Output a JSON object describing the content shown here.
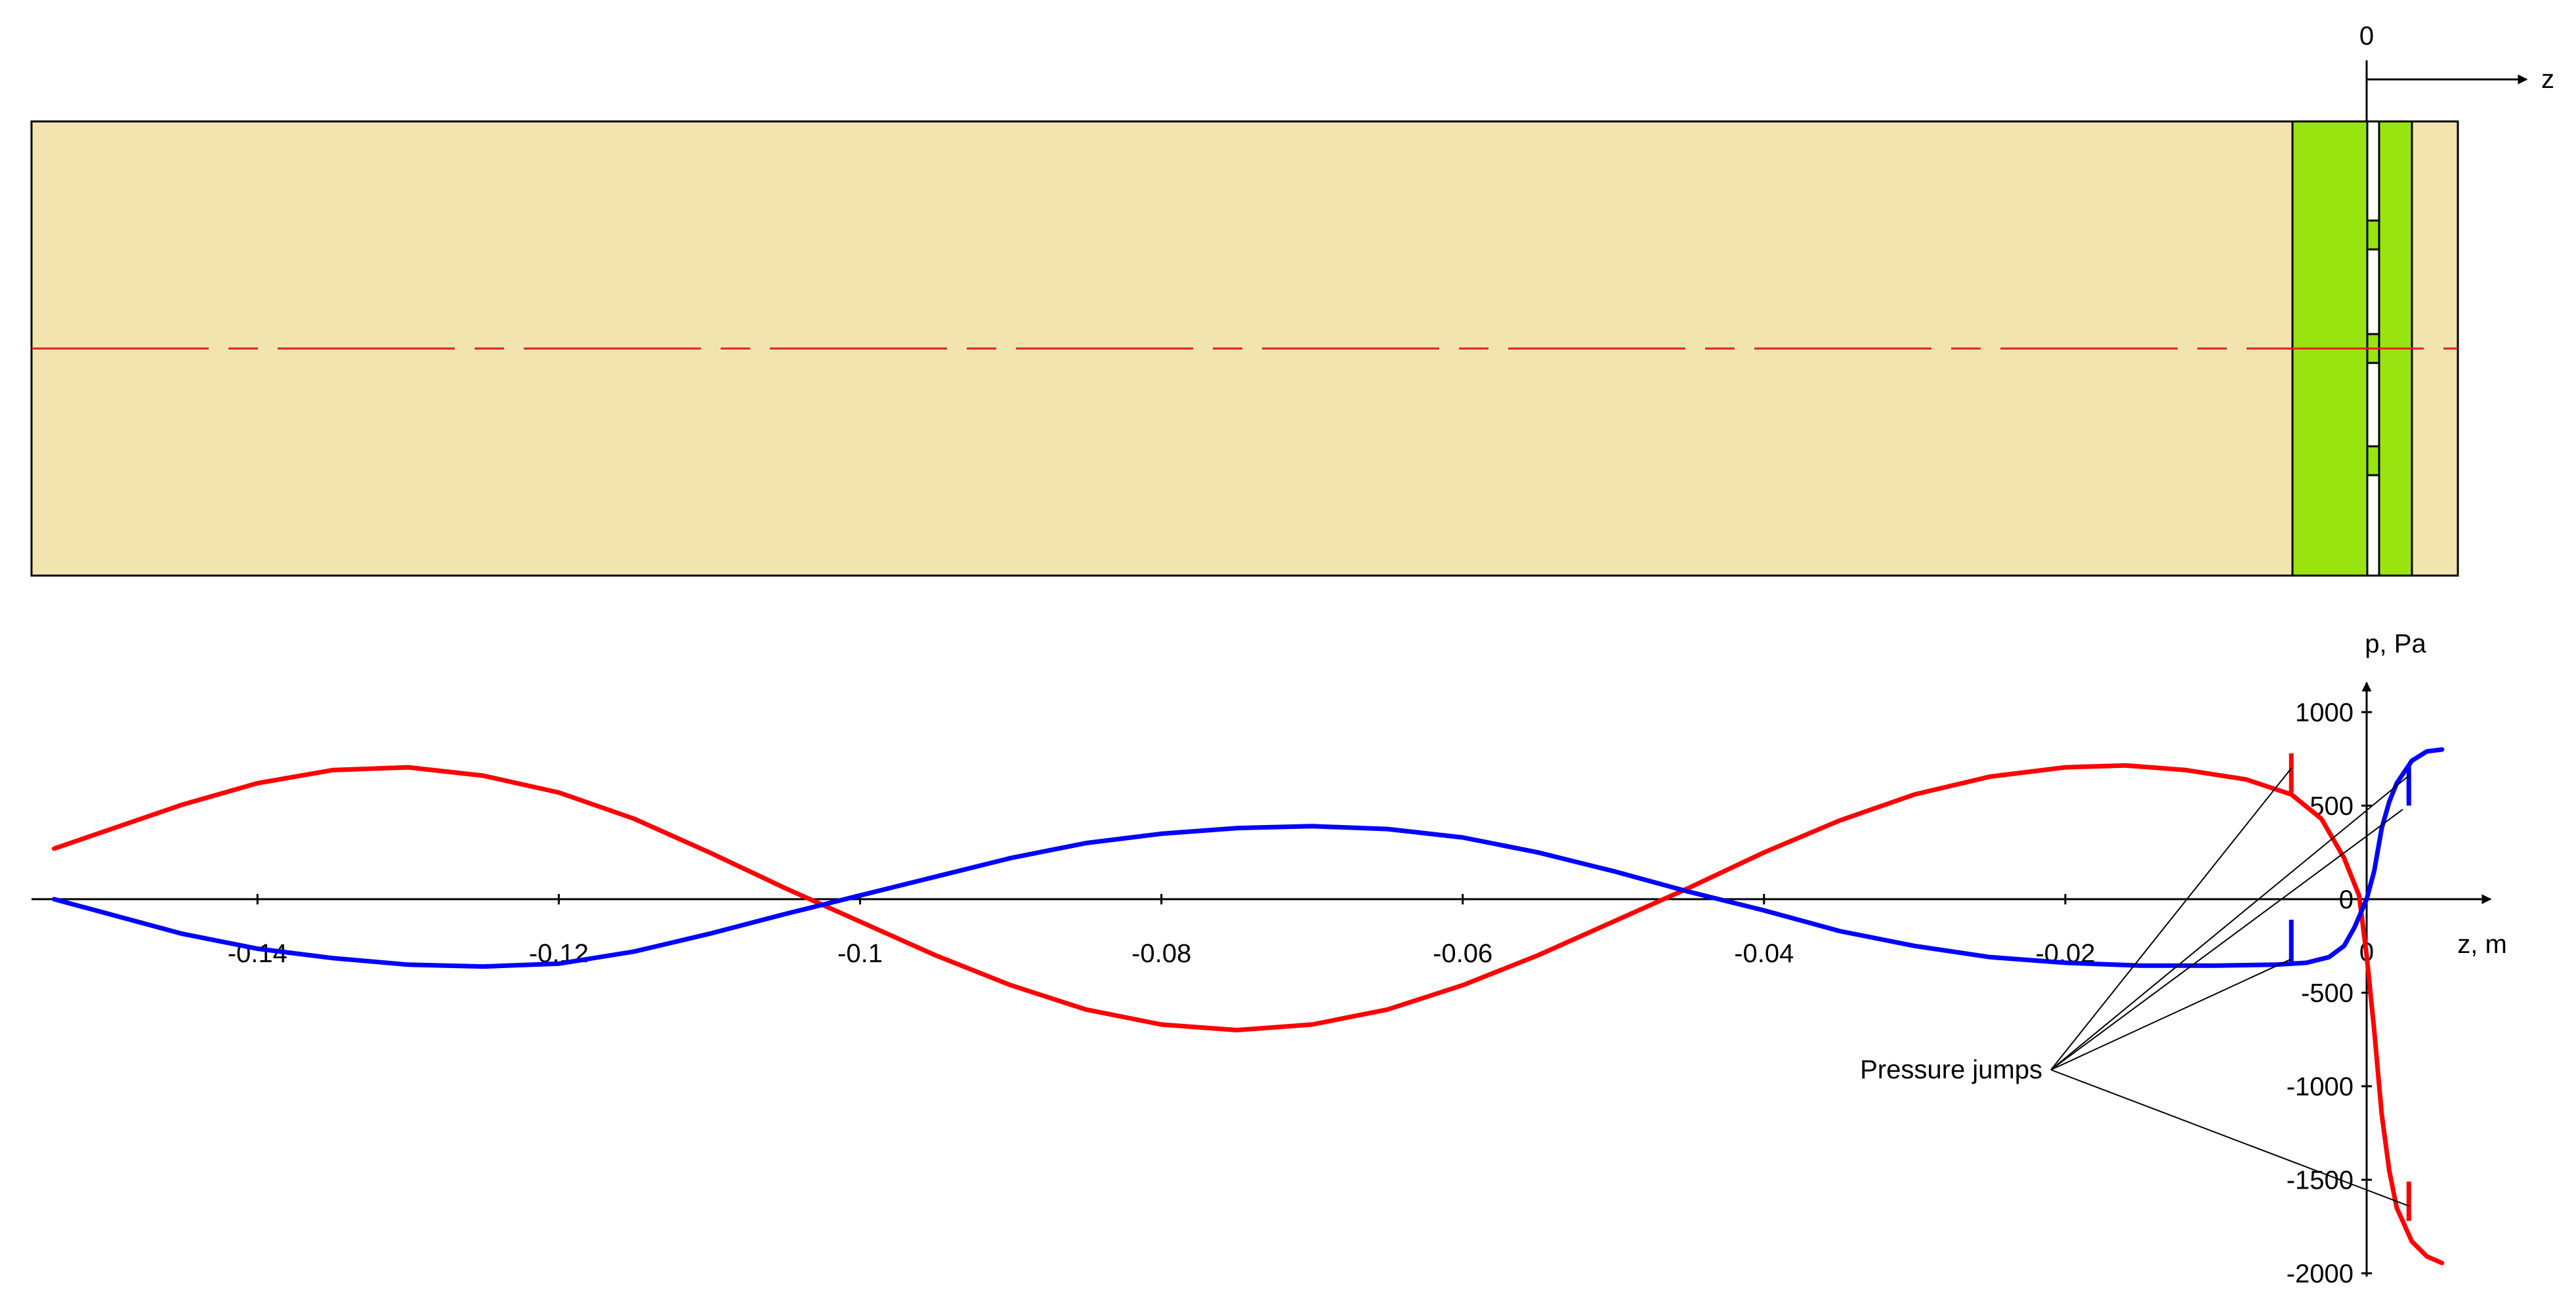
{
  "schematic": {
    "origin_label": "0",
    "axis_label": "z",
    "colors": {
      "body": "#f2e4ae",
      "plate": "#99e410",
      "centerline": "#e02020",
      "outline": "#000000"
    }
  },
  "graph": {
    "y_axis_label": "p, Pa",
    "x_axis_label": "z, m",
    "annotation": "Pressure jumps"
  },
  "chart_data": {
    "type": "line",
    "xlim": [
      -0.155,
      0.008
    ],
    "ylim": [
      -2000,
      1050
    ],
    "x_ticks": [
      {
        "value": -0.14,
        "label": "-0.14"
      },
      {
        "value": -0.12,
        "label": "-0.12"
      },
      {
        "value": -0.1,
        "label": "-0.1"
      },
      {
        "value": -0.08,
        "label": "-0.08"
      },
      {
        "value": -0.06,
        "label": "-0.06"
      },
      {
        "value": -0.04,
        "label": "-0.04"
      },
      {
        "value": -0.02,
        "label": "-0.02"
      },
      {
        "value": 0,
        "label": "0"
      }
    ],
    "y_ticks": [
      {
        "value": 1000,
        "label": "1000"
      },
      {
        "value": 500,
        "label": "500"
      },
      {
        "value": 0,
        "label": "0"
      },
      {
        "value": -500,
        "label": "-500"
      },
      {
        "value": -1000,
        "label": "-1000"
      },
      {
        "value": -1500,
        "label": "-1500"
      },
      {
        "value": -2000,
        "label": "-2000"
      }
    ],
    "series": [
      {
        "color": "#ff0000",
        "points": [
          [
            -0.1535,
            270
          ],
          [
            -0.145,
            505
          ],
          [
            -0.14,
            620
          ],
          [
            -0.135,
            690
          ],
          [
            -0.13,
            705
          ],
          [
            -0.125,
            660
          ],
          [
            -0.12,
            570
          ],
          [
            -0.115,
            430
          ],
          [
            -0.11,
            250
          ],
          [
            -0.105,
            60
          ],
          [
            -0.1,
            -120
          ],
          [
            -0.095,
            -300
          ],
          [
            -0.09,
            -460
          ],
          [
            -0.085,
            -590
          ],
          [
            -0.08,
            -670
          ],
          [
            -0.075,
            -700
          ],
          [
            -0.07,
            -670
          ],
          [
            -0.065,
            -590
          ],
          [
            -0.06,
            -460
          ],
          [
            -0.055,
            -300
          ],
          [
            -0.05,
            -120
          ],
          [
            -0.045,
            60
          ],
          [
            -0.04,
            250
          ],
          [
            -0.035,
            420
          ],
          [
            -0.03,
            560
          ],
          [
            -0.025,
            655
          ],
          [
            -0.02,
            705
          ],
          [
            -0.016,
            715
          ],
          [
            -0.012,
            690
          ],
          [
            -0.008,
            640
          ],
          [
            -0.005,
            560
          ],
          [
            -0.003,
            430
          ],
          [
            -0.0015,
            220
          ],
          [
            -0.0005,
            20
          ],
          [
            0.0,
            -300
          ],
          [
            0.0005,
            -700
          ],
          [
            0.001,
            -1150
          ],
          [
            0.0015,
            -1450
          ],
          [
            0.002,
            -1650
          ],
          [
            0.003,
            -1830
          ],
          [
            0.004,
            -1910
          ],
          [
            0.005,
            -1945
          ]
        ]
      },
      {
        "color": "#0000ff",
        "points": [
          [
            -0.1535,
            0
          ],
          [
            -0.145,
            -185
          ],
          [
            -0.14,
            -265
          ],
          [
            -0.135,
            -315
          ],
          [
            -0.13,
            -350
          ],
          [
            -0.125,
            -360
          ],
          [
            -0.12,
            -345
          ],
          [
            -0.115,
            -280
          ],
          [
            -0.11,
            -185
          ],
          [
            -0.105,
            -80
          ],
          [
            -0.1,
            20
          ],
          [
            -0.095,
            120
          ],
          [
            -0.09,
            220
          ],
          [
            -0.085,
            300
          ],
          [
            -0.08,
            350
          ],
          [
            -0.075,
            380
          ],
          [
            -0.07,
            390
          ],
          [
            -0.065,
            375
          ],
          [
            -0.06,
            330
          ],
          [
            -0.055,
            250
          ],
          [
            -0.05,
            150
          ],
          [
            -0.045,
            40
          ],
          [
            -0.04,
            -60
          ],
          [
            -0.035,
            -170
          ],
          [
            -0.03,
            -250
          ],
          [
            -0.025,
            -310
          ],
          [
            -0.02,
            -340
          ],
          [
            -0.015,
            -355
          ],
          [
            -0.01,
            -355
          ],
          [
            -0.006,
            -350
          ],
          [
            -0.004,
            -340
          ],
          [
            -0.0025,
            -310
          ],
          [
            -0.0015,
            -250
          ],
          [
            -0.0008,
            -150
          ],
          [
            0.0,
            0
          ],
          [
            0.0005,
            150
          ],
          [
            0.001,
            380
          ],
          [
            0.0015,
            520
          ],
          [
            0.002,
            620
          ],
          [
            0.003,
            740
          ],
          [
            0.004,
            790
          ],
          [
            0.005,
            800
          ]
        ]
      }
    ],
    "jump_markers": [
      {
        "color": "#ff0000",
        "z": -0.005,
        "p_from": 570,
        "p_to": 780
      },
      {
        "color": "#0000ff",
        "z": -0.005,
        "p_from": -345,
        "p_to": -110
      },
      {
        "color": "#0000ff",
        "z": 0.0028,
        "p_from": 500,
        "p_to": 720
      },
      {
        "color": "#ff0000",
        "z": 0.0028,
        "p_from": -1720,
        "p_to": -1510
      }
    ],
    "leader_targets": [
      {
        "z": -0.005,
        "p": 700
      },
      {
        "z": 0.0028,
        "p": 660
      },
      {
        "z": 0.0024,
        "p": 480
      },
      {
        "z": -0.005,
        "p": -320
      },
      {
        "z": 0.0028,
        "p": -1640
      }
    ]
  }
}
